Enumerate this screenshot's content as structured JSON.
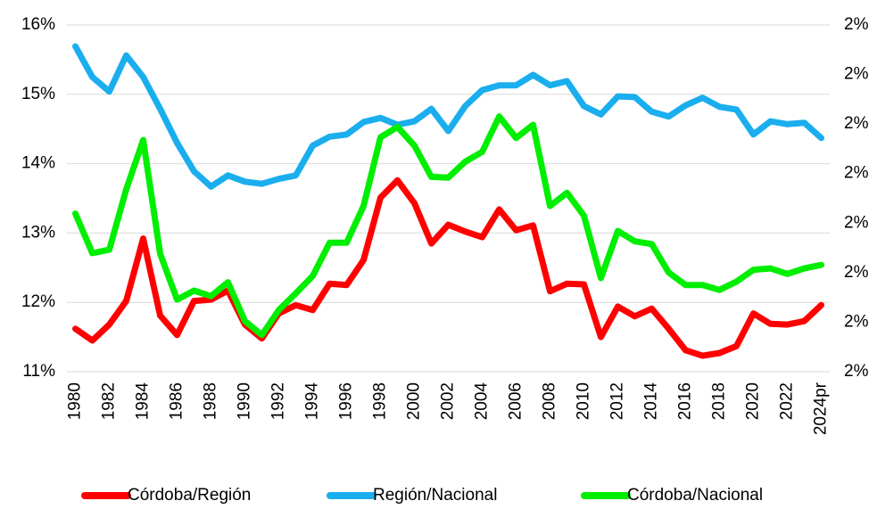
{
  "chart_data": {
    "type": "line",
    "categories": [
      "1980",
      null,
      "1982",
      null,
      "1984",
      null,
      "1986",
      null,
      "1988",
      null,
      "1990",
      null,
      "1992",
      null,
      "1994",
      null,
      "1996",
      null,
      "1998",
      null,
      "2000",
      null,
      "2002",
      null,
      "2004",
      null,
      "2006",
      null,
      "2008",
      null,
      "2010",
      null,
      "2012",
      null,
      "2014",
      null,
      "2016",
      null,
      "2018",
      null,
      "2020",
      null,
      "2022",
      null,
      "2024pr"
    ],
    "series": [
      {
        "name": "Córdoba/Región",
        "color": "#ff0000",
        "values": [
          11.62,
          11.45,
          11.68,
          12.02,
          12.92,
          11.81,
          11.53,
          12.02,
          12.04,
          12.17,
          11.68,
          11.48,
          11.84,
          11.96,
          11.89,
          12.27,
          12.25,
          12.61,
          13.51,
          13.76,
          13.43,
          12.85,
          13.12,
          13.02,
          12.94,
          13.34,
          13.04,
          13.11,
          12.16,
          12.27,
          12.26,
          11.5,
          11.94,
          11.8,
          11.91,
          11.62,
          11.31,
          11.23,
          11.27,
          11.37,
          11.84,
          11.69,
          11.68,
          11.73,
          11.96
        ]
      },
      {
        "name": "Región/Nacional",
        "color": "#1aaeee",
        "values": [
          15.69,
          15.25,
          15.04,
          15.56,
          15.25,
          14.79,
          14.3,
          13.89,
          13.67,
          13.83,
          13.74,
          13.71,
          13.78,
          13.83,
          14.26,
          14.39,
          14.42,
          14.6,
          14.66,
          14.56,
          14.61,
          14.79,
          14.47,
          14.83,
          15.06,
          15.13,
          15.13,
          15.28,
          15.13,
          15.19,
          14.83,
          14.71,
          14.97,
          14.96,
          14.75,
          14.68,
          14.84,
          14.95,
          14.82,
          14.78,
          14.42,
          14.61,
          14.57,
          14.59,
          14.37
        ]
      },
      {
        "name": "Córdoba/Nacional",
        "color": "#00ee00",
        "values": [
          13.28,
          12.71,
          12.76,
          13.63,
          14.34,
          12.7,
          12.04,
          12.17,
          12.09,
          12.29,
          11.73,
          11.53,
          11.89,
          12.13,
          12.38,
          12.86,
          12.86,
          13.39,
          14.38,
          14.53,
          14.26,
          13.81,
          13.8,
          14.03,
          14.17,
          14.68,
          14.37,
          14.56,
          13.39,
          13.58,
          13.25,
          12.35,
          13.03,
          12.88,
          12.84,
          12.43,
          12.25,
          12.25,
          12.18,
          12.3,
          12.47,
          12.49,
          12.41,
          12.49,
          12.54
        ]
      }
    ],
    "ylim": [
      11,
      16
    ],
    "yticks": [
      {
        "value": 11,
        "label": "11%"
      },
      {
        "value": 12,
        "label": "12%"
      },
      {
        "value": 13,
        "label": "13%"
      },
      {
        "value": 14,
        "label": "14%"
      },
      {
        "value": 15,
        "label": "15%"
      },
      {
        "value": 16,
        "label": "16%"
      }
    ],
    "y2lim": [
      1.65,
      2.0
    ],
    "y2ticks": [
      {
        "value": 1.65,
        "label": "2%"
      },
      {
        "value": 1.7,
        "label": "2%"
      },
      {
        "value": 1.75,
        "label": "2%"
      },
      {
        "value": 1.8,
        "label": "2%"
      },
      {
        "value": 1.85,
        "label": "2%"
      },
      {
        "value": 1.9,
        "label": "2%"
      },
      {
        "value": 1.95,
        "label": "2%"
      },
      {
        "value": 2.0,
        "label": "2%"
      }
    ],
    "grid": true,
    "legend": "bottom"
  }
}
